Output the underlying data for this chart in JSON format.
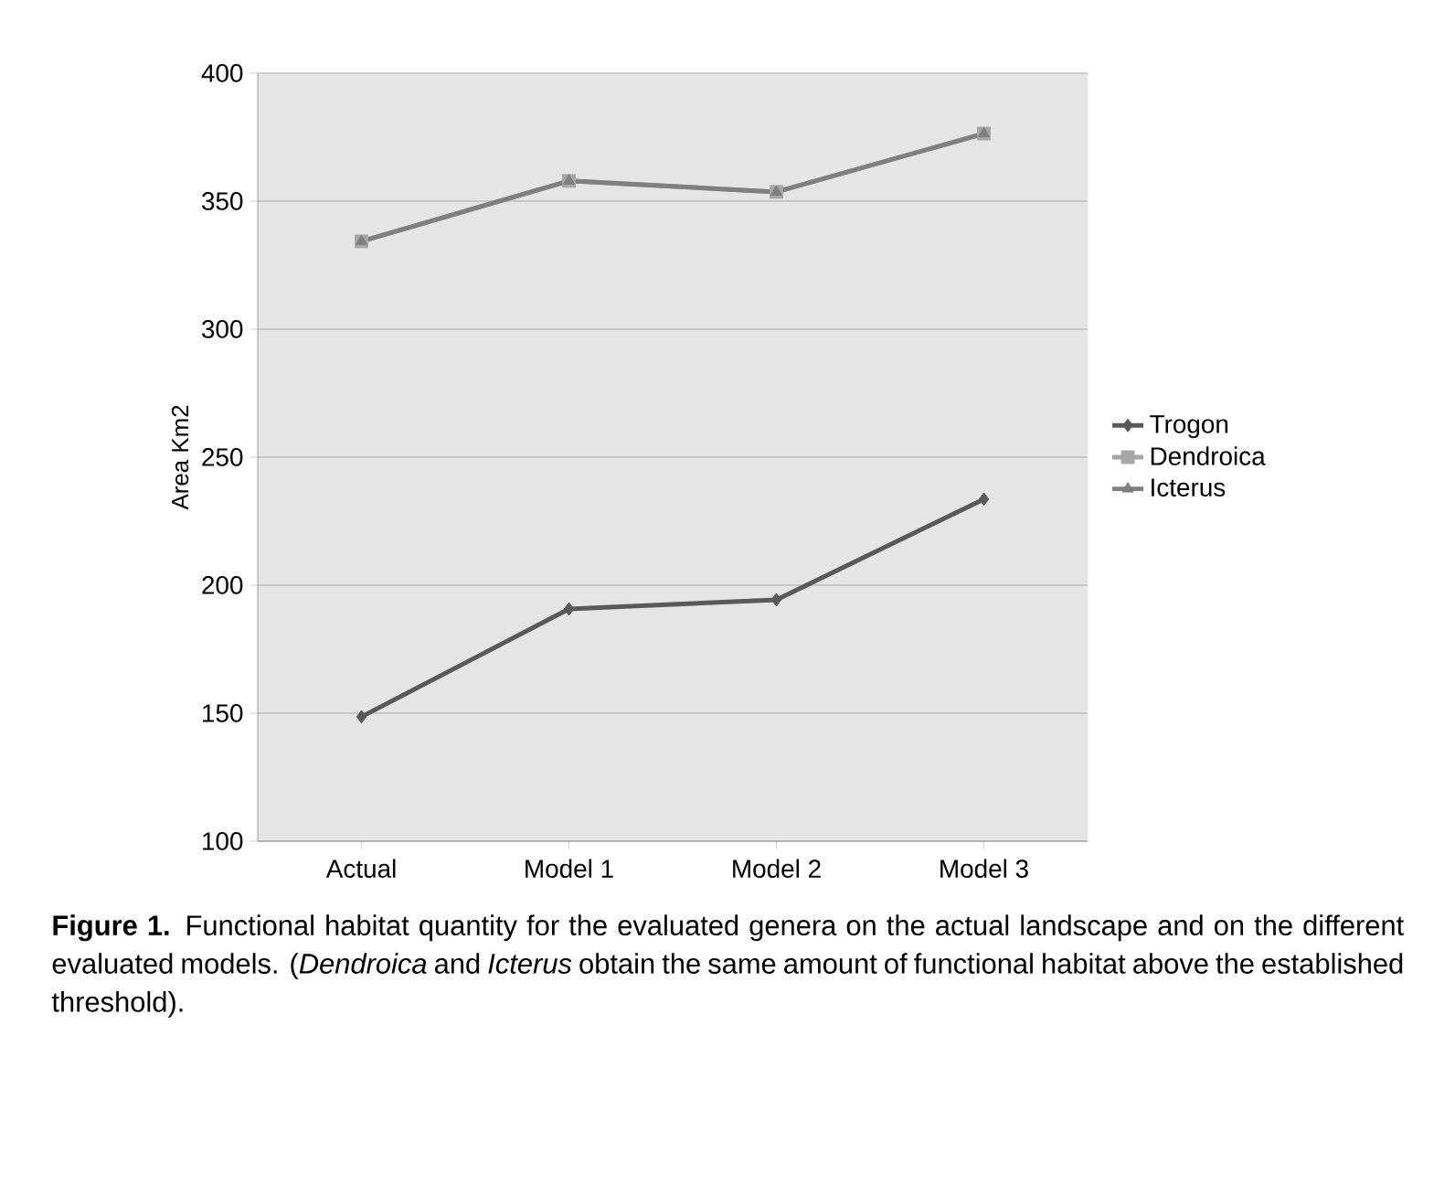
{
  "chart_data": {
    "type": "line",
    "ylabel": "Area Km2",
    "categories": [
      "Actual",
      "Model 1",
      "Model 2",
      "Model 3"
    ],
    "series": [
      {
        "name": "Trogon",
        "color": "#595959",
        "marker": "diamond",
        "values": [
          148.6,
          190.7,
          194.3,
          233.6
        ]
      },
      {
        "name": "Dendroica",
        "color": "#a6a6a6",
        "marker": "square",
        "values": [
          334.3,
          357.9,
          353.6,
          376.4
        ]
      },
      {
        "name": "Icterus",
        "color": "#7f7f7f",
        "marker": "triangle",
        "values": [
          334.3,
          357.9,
          353.6,
          376.4
        ]
      }
    ],
    "ylim": [
      100,
      400
    ],
    "yticks": [
      100,
      150,
      200,
      250,
      300,
      350,
      400
    ],
    "grid": "y",
    "legend": "right",
    "annotations": [
      "**Figure 1.** Functional habitat quantity for the evaluated genera on the actual landscape and on the different evaluated models. (*Dendroica* and *Icterus* obtain the same amount of functional habitat above the established threshold)."
    ]
  }
}
